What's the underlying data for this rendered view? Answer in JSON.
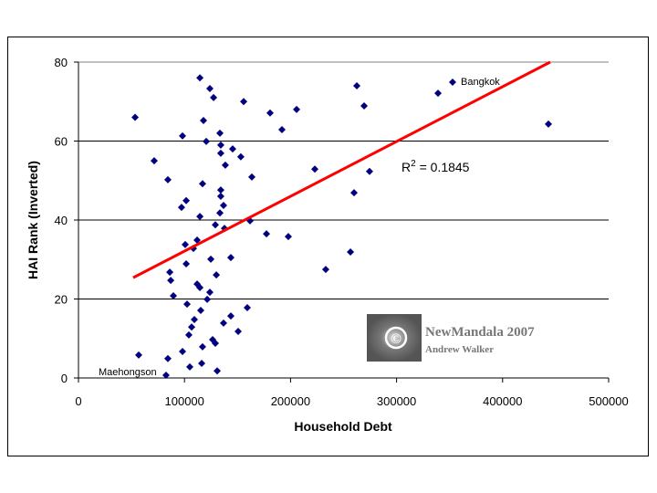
{
  "chart_data": {
    "type": "scatter",
    "title": "",
    "xlabel": "Household Debt",
    "ylabel": "HAI Rank (Inverted)",
    "xlim": [
      0,
      500000
    ],
    "ylim": [
      0,
      80
    ],
    "xticks": [
      "0",
      "100000",
      "200000",
      "300000",
      "400000",
      "500000"
    ],
    "yticks": [
      "0",
      "20",
      "40",
      "60",
      "80"
    ],
    "grid": "horizontal",
    "legend": "none",
    "marker_color": "#000080",
    "trend_color": "#ff0000",
    "trendline": {
      "type": "linear",
      "x": [
        51600,
        444900
      ],
      "y": [
        25.4,
        80.2
      ],
      "r2_label": "R",
      "r2_sup": "2",
      "r2_value": " = 0.1845"
    },
    "annotations": [
      {
        "text": "Bangkok",
        "x": 352800,
        "y": 74.9
      },
      {
        "text": "Maehongson",
        "x": 82600,
        "y": 0.7
      }
    ],
    "points": [
      [
        53400,
        66
      ],
      [
        71400,
        55
      ],
      [
        84300,
        50.2
      ],
      [
        114500,
        76
      ],
      [
        123900,
        73.3
      ],
      [
        127400,
        71
      ],
      [
        155800,
        70
      ],
      [
        98100,
        61.3
      ],
      [
        117900,
        65.2
      ],
      [
        120500,
        59.9
      ],
      [
        133400,
        62
      ],
      [
        134200,
        59
      ],
      [
        145400,
        58
      ],
      [
        153100,
        56
      ],
      [
        134200,
        56.9
      ],
      [
        138500,
        53.9
      ],
      [
        163500,
        50.9
      ],
      [
        117000,
        49.2
      ],
      [
        134200,
        47.6
      ],
      [
        134200,
        46
      ],
      [
        97200,
        43.2
      ],
      [
        101600,
        44.9
      ],
      [
        136800,
        43.7
      ],
      [
        133400,
        41.8
      ],
      [
        114500,
        40.9
      ],
      [
        129100,
        38.8
      ],
      [
        161800,
        39.8
      ],
      [
        137700,
        37.9
      ],
      [
        100700,
        33.8
      ],
      [
        111900,
        34.9
      ],
      [
        108400,
        32.8
      ],
      [
        143700,
        30.5
      ],
      [
        101600,
        28.9
      ],
      [
        124800,
        30.1
      ],
      [
        130000,
        26.1
      ],
      [
        86100,
        26.8
      ],
      [
        87000,
        24.7
      ],
      [
        111900,
        23.8
      ],
      [
        114500,
        22.9
      ],
      [
        123900,
        21.7
      ],
      [
        121400,
        19.9
      ],
      [
        89500,
        20.8
      ],
      [
        102400,
        18.7
      ],
      [
        115300,
        17.1
      ],
      [
        143700,
        15.7
      ],
      [
        136800,
        13.9
      ],
      [
        109300,
        14.8
      ],
      [
        106700,
        12.9
      ],
      [
        150600,
        11.8
      ],
      [
        159200,
        17.8
      ],
      [
        104100,
        10.9
      ],
      [
        126500,
        9.7
      ],
      [
        129100,
        8.8
      ],
      [
        117000,
        7.9
      ],
      [
        98100,
        6.7
      ],
      [
        116200,
        3.7
      ],
      [
        105000,
        2.8
      ],
      [
        56800,
        5.8
      ],
      [
        84300,
        4.9
      ],
      [
        82600,
        0.7
      ],
      [
        130800,
        1.8
      ],
      [
        177300,
        36.5
      ],
      [
        197900,
        35.8
      ],
      [
        233200,
        27.5
      ],
      [
        256500,
        31.9
      ],
      [
        191900,
        62.9
      ],
      [
        180700,
        67.1
      ],
      [
        205700,
        68
      ],
      [
        222900,
        52.9
      ],
      [
        259900,
        46.9
      ],
      [
        274500,
        52.3
      ],
      [
        262500,
        74
      ],
      [
        269400,
        68.9
      ],
      [
        339100,
        72.1
      ],
      [
        352800,
        74.9
      ],
      [
        443200,
        64.3
      ]
    ]
  },
  "watermark": {
    "title": "NewMandala 2007",
    "author": "Andrew Walker",
    "symbol": "©"
  }
}
